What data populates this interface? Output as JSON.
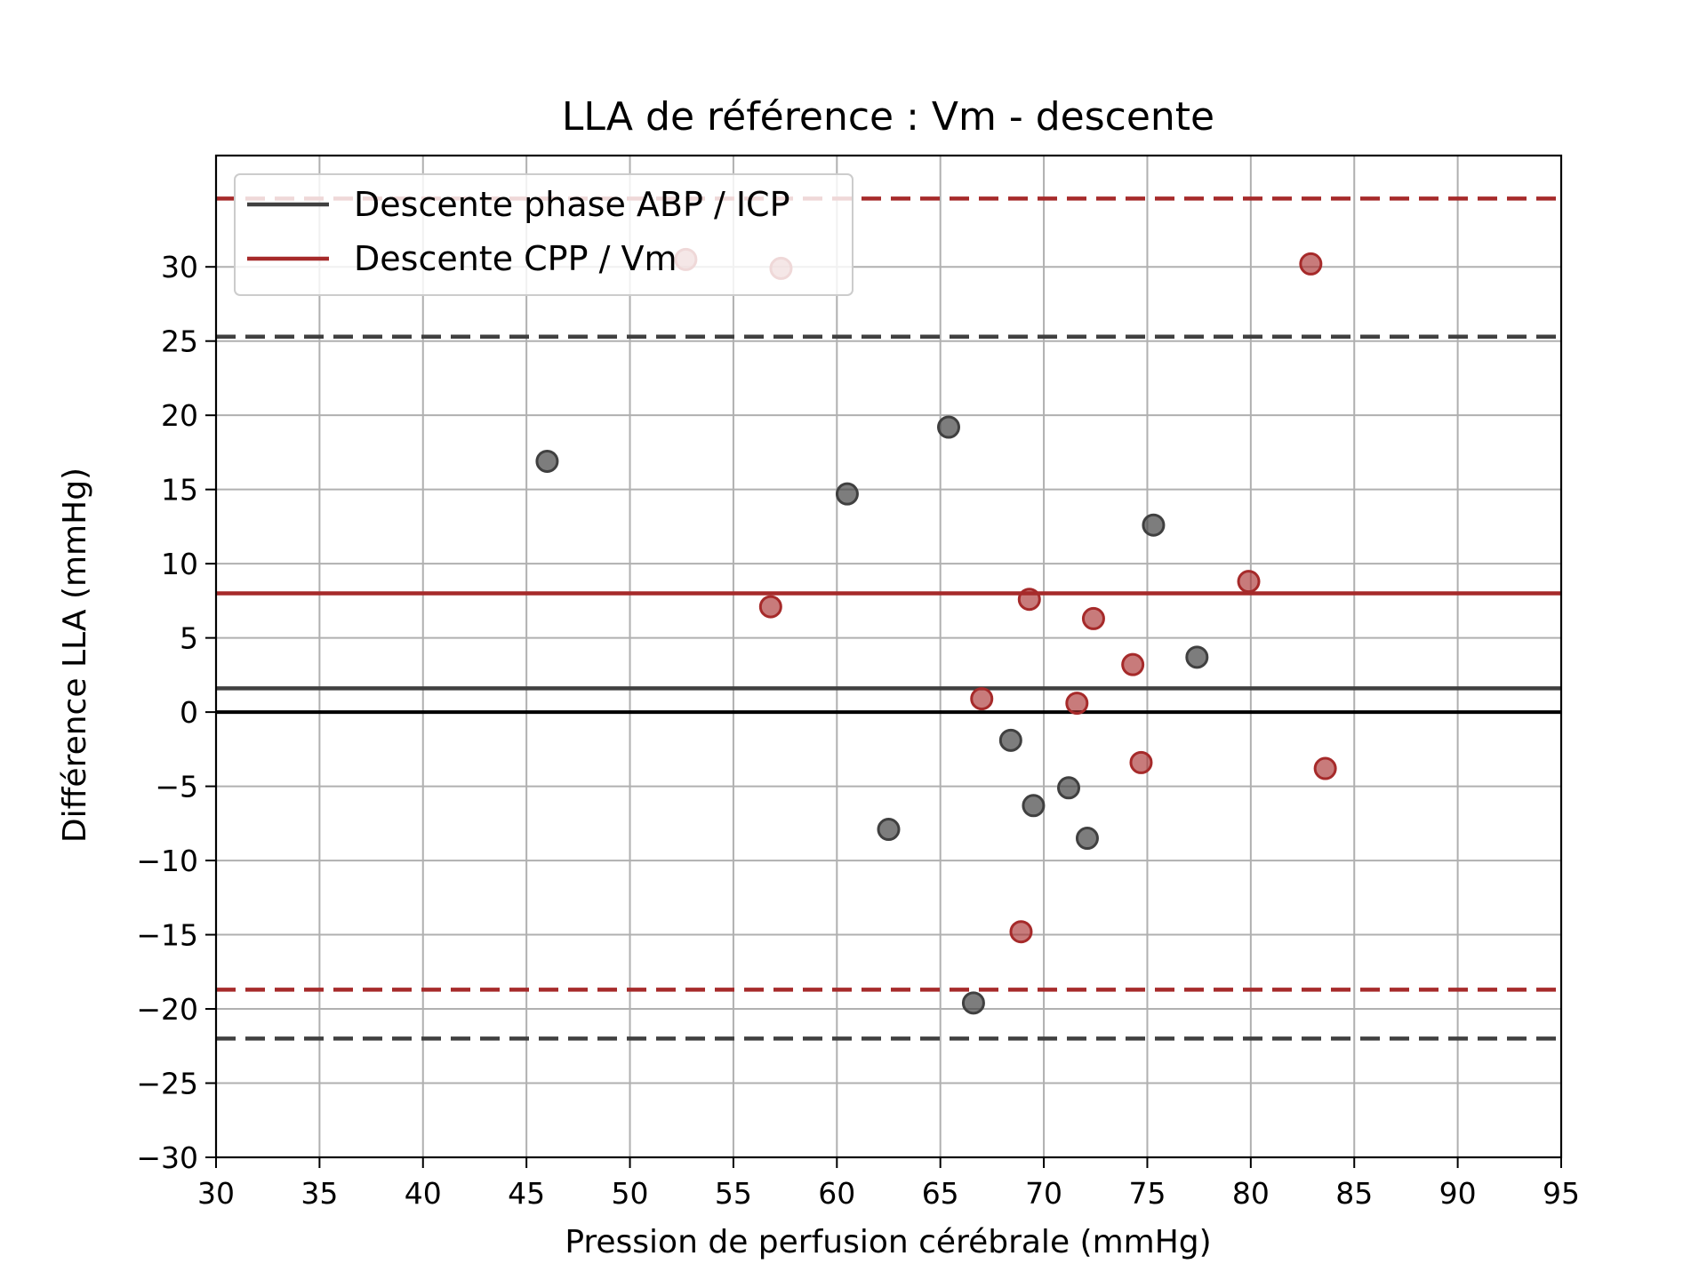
{
  "chart_data": {
    "type": "scatter",
    "title": "LLA de référence : Vm - descente",
    "xlabel": "Pression de perfusion cérébrale (mmHg)",
    "ylabel": "Différence LLA (mmHg)",
    "xlim": [
      30,
      95
    ],
    "ylim": [
      -30,
      37.5
    ],
    "xticks": [
      30,
      35,
      40,
      45,
      50,
      55,
      60,
      65,
      70,
      75,
      80,
      85,
      90,
      95
    ],
    "yticks": [
      -30,
      -25,
      -20,
      -15,
      -10,
      -5,
      0,
      5,
      10,
      15,
      20,
      25,
      30
    ],
    "xtick_labels": [
      "30",
      "35",
      "40",
      "45",
      "50",
      "55",
      "60",
      "65",
      "70",
      "75",
      "80",
      "85",
      "90",
      "95"
    ],
    "ytick_labels": [
      "−30",
      "−25",
      "−20",
      "−15",
      "−10",
      "−5",
      "0",
      "5",
      "10",
      "15",
      "20",
      "25",
      "30"
    ],
    "grid": true,
    "legend_position": "top-left",
    "zero_line": 0,
    "series": [
      {
        "name": "Descente phase ABP / ICP",
        "color": "#404040",
        "mean": 1.6,
        "loa_upper": 25.3,
        "loa_lower": -22.0,
        "points": [
          {
            "x": 46.0,
            "y": 16.9
          },
          {
            "x": 60.5,
            "y": 14.7
          },
          {
            "x": 62.5,
            "y": -7.9
          },
          {
            "x": 65.4,
            "y": 19.2
          },
          {
            "x": 66.6,
            "y": -19.6
          },
          {
            "x": 68.4,
            "y": -1.9
          },
          {
            "x": 69.5,
            "y": -6.3
          },
          {
            "x": 71.2,
            "y": -5.1
          },
          {
            "x": 72.1,
            "y": -8.5
          },
          {
            "x": 75.3,
            "y": 12.6
          },
          {
            "x": 77.4,
            "y": 3.7
          }
        ]
      },
      {
        "name": "Descente CPP / Vm",
        "color": "#a62a2a",
        "mean": 8.0,
        "loa_upper": 34.6,
        "loa_lower": -18.7,
        "points": [
          {
            "x": 52.7,
            "y": 30.5
          },
          {
            "x": 56.8,
            "y": 7.1
          },
          {
            "x": 57.3,
            "y": 29.9
          },
          {
            "x": 67.0,
            "y": 0.9
          },
          {
            "x": 68.9,
            "y": -14.8
          },
          {
            "x": 69.3,
            "y": 7.6
          },
          {
            "x": 71.6,
            "y": 0.6
          },
          {
            "x": 72.4,
            "y": 6.3
          },
          {
            "x": 74.3,
            "y": 3.2
          },
          {
            "x": 74.7,
            "y": -3.4
          },
          {
            "x": 79.9,
            "y": 8.8
          },
          {
            "x": 82.9,
            "y": 30.2
          },
          {
            "x": 83.6,
            "y": -3.8
          }
        ]
      }
    ]
  }
}
